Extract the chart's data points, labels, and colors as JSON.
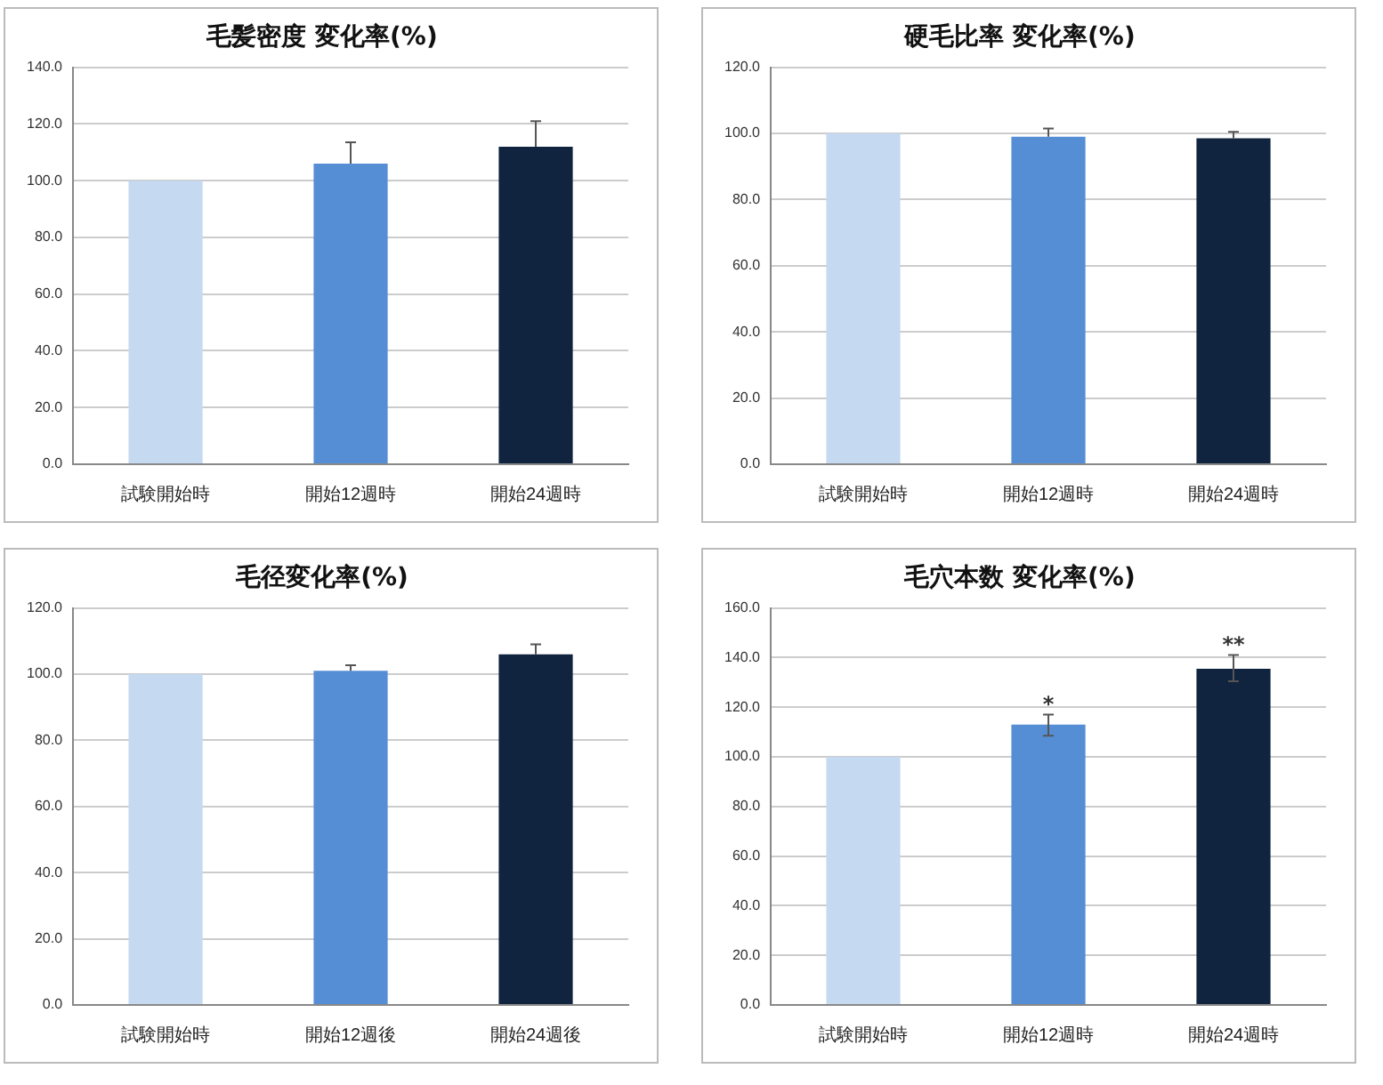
{
  "chart_data": [
    {
      "type": "bar",
      "title": "毛髪密度 変化率(%)",
      "categories": [
        "試験開始時",
        "開始12週時",
        "開始24週時"
      ],
      "values": [
        100,
        106,
        112
      ],
      "colors": [
        "#c5d9f1",
        "#558ed5",
        "#10243f"
      ],
      "errors": [
        null,
        [
          106,
          113.5
        ],
        [
          112,
          121
        ]
      ],
      "ylim": [
        0,
        140
      ],
      "yticks": [
        {
          "value": 0,
          "label": "0.0"
        },
        {
          "value": 20,
          "label": "20.0"
        },
        {
          "value": 40,
          "label": "40.0"
        },
        {
          "value": 60,
          "label": "60.0"
        },
        {
          "value": 80,
          "label": "80.0"
        },
        {
          "value": 100,
          "label": "100.0"
        },
        {
          "value": 120,
          "label": "120.0"
        },
        {
          "value": 140,
          "label": "140.0"
        }
      ],
      "grid": "y"
    },
    {
      "type": "bar",
      "title": "硬毛比率 変化率(%)",
      "categories": [
        "試験開始時",
        "開始12週時",
        "開始24週時"
      ],
      "values": [
        100,
        99,
        98.5
      ],
      "colors": [
        "#c5d9f1",
        "#558ed5",
        "#10243f"
      ],
      "errors": [
        null,
        [
          99,
          101.5
        ],
        [
          98.5,
          100.5
        ]
      ],
      "ylim": [
        0,
        120
      ],
      "yticks": [
        {
          "value": 0,
          "label": "0.0"
        },
        {
          "value": 20,
          "label": "20.0"
        },
        {
          "value": 40,
          "label": "40.0"
        },
        {
          "value": 60,
          "label": "60.0"
        },
        {
          "value": 80,
          "label": "80.0"
        },
        {
          "value": 100,
          "label": "100.0"
        },
        {
          "value": 120,
          "label": "120.0"
        }
      ],
      "grid": "y"
    },
    {
      "type": "bar",
      "title": "毛径変化率(%)",
      "categories": [
        "試験開始時",
        "開始12週後",
        "開始24週後"
      ],
      "values": [
        100,
        101,
        106
      ],
      "colors": [
        "#c5d9f1",
        "#558ed5",
        "#10243f"
      ],
      "errors": [
        null,
        [
          101,
          102.7
        ],
        [
          106,
          109
        ]
      ],
      "ylim": [
        0,
        120
      ],
      "yticks": [
        {
          "value": 0,
          "label": "0.0"
        },
        {
          "value": 20,
          "label": "20.0"
        },
        {
          "value": 40,
          "label": "40.0"
        },
        {
          "value": 60,
          "label": "60.0"
        },
        {
          "value": 80,
          "label": "80.0"
        },
        {
          "value": 100,
          "label": "100.0"
        },
        {
          "value": 120,
          "label": "120.0"
        }
      ],
      "grid": "y"
    },
    {
      "type": "bar",
      "title": "毛穴本数 変化率(%)",
      "categories": [
        "試験開始時",
        "開始12週時",
        "開始24週時"
      ],
      "values": [
        100,
        113,
        135.5
      ],
      "colors": [
        "#c5d9f1",
        "#558ed5",
        "#10243f"
      ],
      "errors": [
        null,
        [
          108.5,
          117
        ],
        [
          130.5,
          141
        ]
      ],
      "ylim": [
        0,
        160
      ],
      "yticks": [
        {
          "value": 0,
          "label": "0.0"
        },
        {
          "value": 20,
          "label": "20.0"
        },
        {
          "value": 40,
          "label": "40.0"
        },
        {
          "value": 60,
          "label": "60.0"
        },
        {
          "value": 80,
          "label": "80.0"
        },
        {
          "value": 100,
          "label": "100.0"
        },
        {
          "value": 120,
          "label": "120.0"
        },
        {
          "value": 140,
          "label": "140.0"
        },
        {
          "value": 160,
          "label": "160.0"
        }
      ],
      "grid": "y",
      "annotations": [
        {
          "text": "*",
          "x": "開始12週時",
          "y": 119
        },
        {
          "text": "**",
          "x": "開始24週時",
          "y": 143
        }
      ]
    }
  ]
}
